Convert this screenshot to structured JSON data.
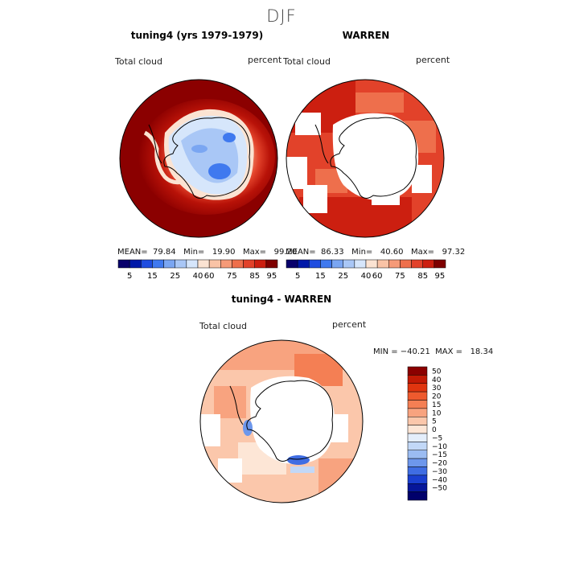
{
  "page": {
    "title": "DJF"
  },
  "panels": {
    "left": {
      "title": "tuning4 (yrs 1979-1979)",
      "var_label": "Total cloud",
      "units": "percent",
      "stats": "MEAN=  79.84   Min=   19.90   Max=   99.20"
    },
    "right": {
      "title": "WARREN",
      "var_label": "Total cloud",
      "units": "percent",
      "stats": "MEAN=  86.33   Min=   40.60   Max=   97.32"
    },
    "diff": {
      "title": "tuning4 - WARREN",
      "var_label": "Total cloud",
      "units": "percent",
      "stats": "MIN = −40.21  MAX =   18.34"
    }
  },
  "colorbar_abs": {
    "labels": [
      "5",
      "15",
      "25",
      "40",
      "60",
      "75",
      "85",
      "95"
    ],
    "colors": [
      "#08006b",
      "#0018a8",
      "#1f4de0",
      "#3f79ef",
      "#7aa6f2",
      "#a9c7f6",
      "#d6e6fb",
      "#fbe3d2",
      "#f9c3a6",
      "#f59a78",
      "#ee6f4c",
      "#e2422a",
      "#cc1f10",
      "#7e0000"
    ]
  },
  "colorbar_diff": {
    "labels": [
      "50",
      "40",
      "30",
      "20",
      "15",
      "10",
      "5",
      "0",
      "−5",
      "−10",
      "−15",
      "−20",
      "−30",
      "−40",
      "−50"
    ],
    "colors": [
      "#8b0000",
      "#c21a05",
      "#e0350f",
      "#ee5a2e",
      "#f47f54",
      "#f8a37f",
      "#fbc7ab",
      "#fde6d6",
      "#e4eefb",
      "#c2d8f7",
      "#9bbcf2",
      "#6d97ec",
      "#3f6de3",
      "#1a3fd0",
      "#06169a",
      "#00006b"
    ]
  }
}
